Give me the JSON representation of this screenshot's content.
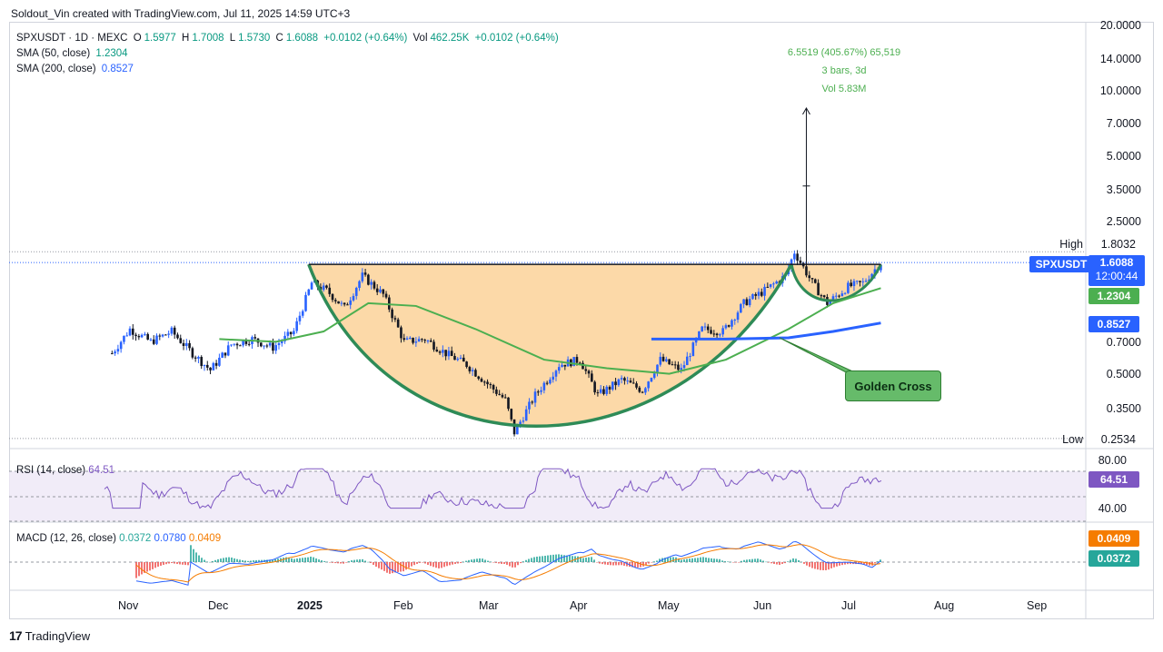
{
  "caption": "Soldout_Vin created with TradingView.com, Jul 11, 2025 14:59 UTC+3",
  "legend": {
    "symbol_line": "SPXUSDT · 1D · MEXC",
    "o_label": "O",
    "o_value": "1.5977",
    "h_label": "H",
    "h_value": "1.7008",
    "l_label": "L",
    "l_value": "1.5730",
    "c_label": "C",
    "c_value": "1.6088",
    "change": "+0.0102 (+0.64%)",
    "vol_label": "Vol",
    "vol_value": "462.25K",
    "vol_change": "+0.0102 (+0.64%)",
    "sma50_label": "SMA (50, close)",
    "sma50_value": "1.2304",
    "sma200_label": "SMA (200, close)",
    "sma200_value": "0.8527"
  },
  "price_scale": [
    "20.0000",
    "14.0000",
    "10.0000",
    "7.0000",
    "5.0000",
    "3.5000",
    "2.5000",
    "0.7000",
    "0.5000",
    "0.3500"
  ],
  "high_label": "High",
  "high_value": "1.8032",
  "low_label": "Low",
  "low_value": "0.2534",
  "tags": {
    "symbol": "SPXUSDT",
    "price": "1.6088",
    "countdown": "12:00:44",
    "sma50": "1.2304",
    "sma200": "0.8527"
  },
  "measure": {
    "line1": "6.5519 (405.67%) 65,519",
    "line2": "3 bars, 3d",
    "line3": "Vol 5.83M"
  },
  "annotation": "Golden Cross",
  "rsi": {
    "label": "RSI (14, close)",
    "value": "64.51",
    "scale": [
      "80.00",
      "40.00"
    ],
    "tag": "64.51"
  },
  "macd": {
    "label": "MACD (12, 26, close)",
    "v1": "0.0372",
    "v2": "0.0780",
    "v3": "0.0409",
    "tag_signal": "0.0409",
    "tag_macd": "0.0372"
  },
  "months": [
    "Nov",
    "Dec",
    "2025",
    "Feb",
    "Mar",
    "Apr",
    "May",
    "Jun",
    "Jul",
    "Aug",
    "Sep"
  ],
  "logo_text": "TradingView",
  "colors": {
    "up": "#2962ff",
    "down": "#131722",
    "sma50": "#4caf50",
    "sma200": "#2962ff",
    "cup_fill": "#fcd9a8",
    "cup_stroke": "#2e8b57"
  },
  "chart_data": {
    "type": "candlestick",
    "title": "SPXUSDT · 1D · MEXC",
    "y_scale": "log",
    "ylim": [
      0.25,
      20
    ],
    "x_range": [
      "2024-10-25",
      "2025-09-20"
    ],
    "close_path": [
      [
        "2024-10-26",
        0.62
      ],
      [
        "2024-11-01",
        0.8
      ],
      [
        "2024-11-08",
        0.7
      ],
      [
        "2024-11-15",
        0.78
      ],
      [
        "2024-11-22",
        0.62
      ],
      [
        "2024-11-28",
        0.52
      ],
      [
        "2024-12-05",
        0.68
      ],
      [
        "2024-12-12",
        0.72
      ],
      [
        "2024-12-19",
        0.66
      ],
      [
        "2024-12-26",
        0.78
      ],
      [
        "2025-01-01",
        1.3
      ],
      [
        "2025-01-06",
        1.2
      ],
      [
        "2025-01-12",
        1.0
      ],
      [
        "2025-01-18",
        1.4
      ],
      [
        "2025-01-25",
        1.15
      ],
      [
        "2025-02-01",
        0.7
      ],
      [
        "2025-02-08",
        0.72
      ],
      [
        "2025-02-15",
        0.62
      ],
      [
        "2025-02-22",
        0.55
      ],
      [
        "2025-03-01",
        0.45
      ],
      [
        "2025-03-07",
        0.38
      ],
      [
        "2025-03-10",
        0.27
      ],
      [
        "2025-03-17",
        0.4
      ],
      [
        "2025-03-25",
        0.55
      ],
      [
        "2025-04-01",
        0.58
      ],
      [
        "2025-04-07",
        0.4
      ],
      [
        "2025-04-15",
        0.47
      ],
      [
        "2025-04-22",
        0.42
      ],
      [
        "2025-04-28",
        0.58
      ],
      [
        "2025-05-05",
        0.52
      ],
      [
        "2025-05-12",
        0.8
      ],
      [
        "2025-05-19",
        0.78
      ],
      [
        "2025-05-26",
        1.05
      ],
      [
        "2025-06-02",
        1.2
      ],
      [
        "2025-06-09",
        1.4
      ],
      [
        "2025-06-12",
        1.8
      ],
      [
        "2025-06-18",
        1.3
      ],
      [
        "2025-06-23",
        1.05
      ],
      [
        "2025-06-30",
        1.25
      ],
      [
        "2025-07-05",
        1.3
      ],
      [
        "2025-07-11",
        1.6088
      ]
    ],
    "sma50": [
      [
        "2024-12-01",
        0.72
      ],
      [
        "2024-12-20",
        0.7
      ],
      [
        "2025-01-05",
        0.78
      ],
      [
        "2025-01-20",
        1.05
      ],
      [
        "2025-02-05",
        1.02
      ],
      [
        "2025-02-25",
        0.8
      ],
      [
        "2025-03-20",
        0.58
      ],
      [
        "2025-04-10",
        0.53
      ],
      [
        "2025-05-01",
        0.5
      ],
      [
        "2025-05-20",
        0.58
      ],
      [
        "2025-06-10",
        0.8
      ],
      [
        "2025-06-25",
        1.05
      ],
      [
        "2025-07-11",
        1.2304
      ]
    ],
    "sma200": [
      [
        "2025-04-25",
        0.72
      ],
      [
        "2025-05-20",
        0.72
      ],
      [
        "2025-06-10",
        0.73
      ],
      [
        "2025-06-25",
        0.78
      ],
      [
        "2025-07-11",
        0.8527
      ]
    ],
    "resistance": 1.58,
    "high": 1.8032,
    "low": 0.2534,
    "measure_target": 8.16,
    "rsi": {
      "value": 64.51,
      "levels": [
        80,
        40
      ]
    },
    "macd": {
      "macd": 0.0372,
      "signal": 0.0409,
      "histogram": 0.078
    }
  }
}
